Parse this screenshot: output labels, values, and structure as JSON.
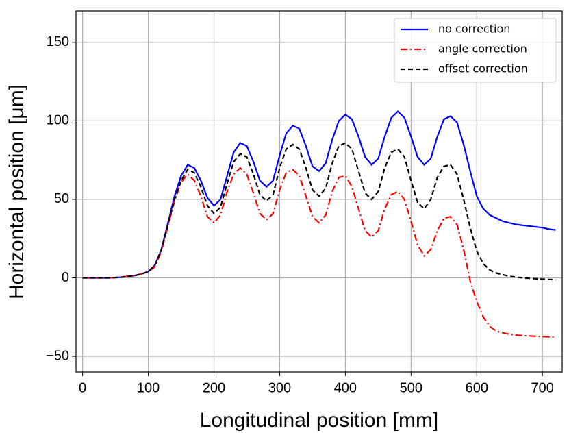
{
  "chart_data": {
    "type": "line",
    "xlabel": "Longitudinal position [mm]",
    "ylabel": "Horizontal position [μm]",
    "x": [
      0,
      10,
      20,
      30,
      40,
      50,
      60,
      70,
      80,
      90,
      100,
      110,
      120,
      130,
      140,
      150,
      160,
      170,
      180,
      190,
      200,
      210,
      220,
      230,
      240,
      250,
      260,
      270,
      280,
      290,
      300,
      310,
      320,
      330,
      340,
      350,
      360,
      370,
      380,
      390,
      400,
      410,
      420,
      430,
      440,
      450,
      460,
      470,
      480,
      490,
      500,
      510,
      520,
      530,
      540,
      550,
      560,
      570,
      580,
      590,
      600,
      610,
      620,
      630,
      640,
      650,
      660,
      670,
      680,
      690,
      700,
      710,
      720
    ],
    "series": [
      {
        "name": "no correction",
        "color": "#0000ff",
        "linestyle": "solid",
        "values": [
          0,
          0,
          0,
          0,
          0,
          0.2,
          0.5,
          1,
          1.5,
          2.5,
          4,
          8,
          18,
          35,
          52,
          65,
          72,
          70,
          62,
          51,
          46,
          50,
          65,
          80,
          86,
          84,
          74,
          62,
          58,
          62,
          78,
          92,
          97,
          95,
          84,
          71,
          68,
          73,
          88,
          100,
          104,
          101,
          90,
          77,
          72,
          76,
          90,
          102,
          106,
          102,
          90,
          77,
          72,
          76,
          90,
          101,
          103,
          99,
          85,
          68,
          52,
          44,
          40,
          38,
          36,
          35,
          34,
          33.5,
          33,
          32.5,
          32,
          31,
          30.5
        ]
      },
      {
        "name": "angle correction",
        "color": "#ff0000",
        "linestyle": "dashdot",
        "values": [
          0,
          0,
          0,
          0,
          0,
          0.2,
          0.5,
          1,
          1.5,
          2.5,
          4,
          7,
          17,
          33,
          49,
          61,
          66,
          62,
          52,
          39,
          35,
          40,
          55,
          66,
          70,
          66,
          54,
          41,
          37,
          41,
          56,
          67,
          69,
          65,
          52,
          39,
          35,
          40,
          55,
          64,
          65,
          58,
          44,
          30,
          26,
          30,
          44,
          53,
          55,
          50,
          36,
          21,
          14,
          18,
          30,
          38,
          39,
          34,
          18,
          -2,
          -15,
          -25,
          -31,
          -34,
          -35,
          -36,
          -36.5,
          -36.8,
          -37,
          -37.2,
          -37.4,
          -37.6,
          -37.8
        ]
      },
      {
        "name": "offset correction",
        "color": "#000000",
        "linestyle": "dashed",
        "values": [
          0,
          0,
          0,
          0,
          0,
          0.2,
          0.5,
          1,
          1.5,
          2.5,
          4,
          8,
          18,
          34,
          50,
          62,
          69,
          67,
          58,
          46,
          41,
          45,
          60,
          74,
          79,
          77,
          66,
          53,
          49,
          53,
          70,
          82,
          85,
          82,
          70,
          56,
          52,
          57,
          73,
          84,
          86,
          82,
          68,
          54,
          50,
          55,
          70,
          80,
          82,
          77,
          62,
          48,
          44,
          50,
          64,
          71,
          72,
          66,
          50,
          32,
          17,
          9,
          5,
          3,
          2,
          1,
          0.5,
          0,
          -0.3,
          -0.6,
          -0.8,
          -1,
          -1.2
        ]
      }
    ],
    "xlim": [
      -10,
      730
    ],
    "ylim": [
      -60,
      170
    ],
    "xticks": [
      0,
      100,
      200,
      300,
      400,
      500,
      600,
      700
    ],
    "yticks": [
      {
        "value": -50,
        "label": "−50"
      },
      0,
      50,
      100,
      150
    ],
    "grid": true,
    "legend": "upper right"
  }
}
